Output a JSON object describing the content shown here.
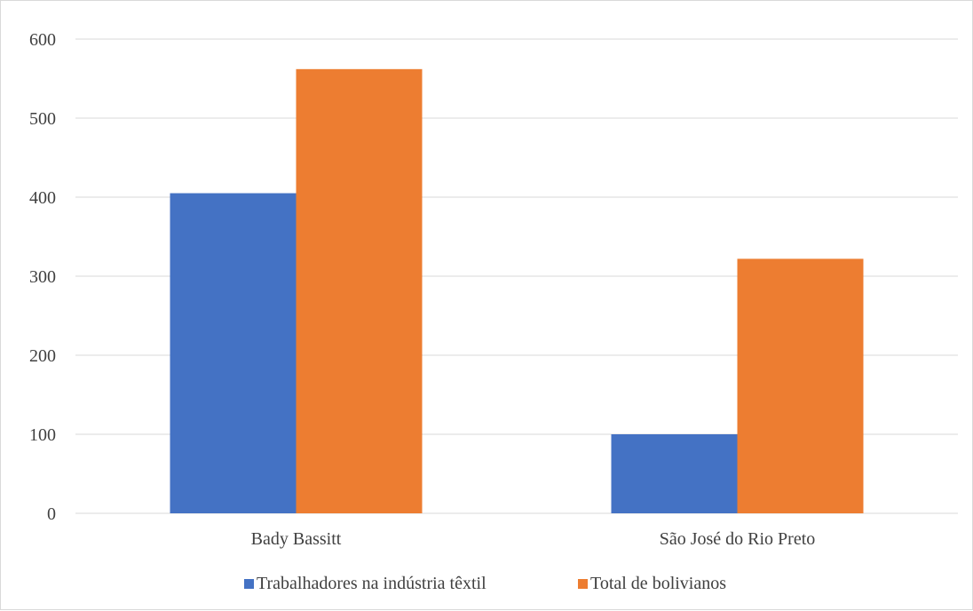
{
  "chart_data": {
    "type": "bar",
    "categories": [
      "Bady Bassitt",
      "São José do Rio Preto"
    ],
    "series": [
      {
        "name": "Trabalhadores na indústria têxtil",
        "color": "#4472c4",
        "values": [
          405,
          100
        ]
      },
      {
        "name": "Total de bolivianos",
        "color": "#ed7d31",
        "values": [
          562,
          322
        ]
      }
    ],
    "ylim": [
      0,
      600
    ],
    "yticks": [
      0,
      100,
      200,
      300,
      400,
      500,
      600
    ],
    "grid": true,
    "gridColor": "#d9d9d9",
    "legend": "bottom"
  }
}
